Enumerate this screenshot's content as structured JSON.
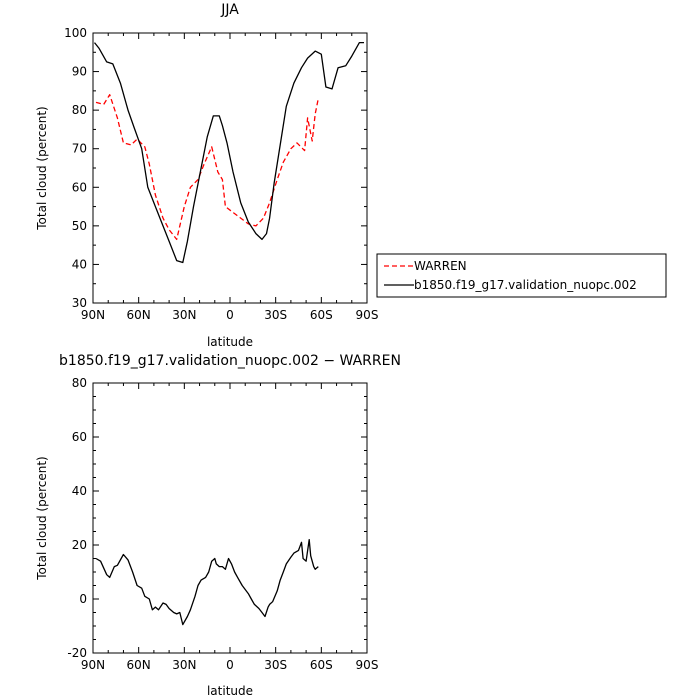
{
  "chart_data": [
    {
      "type": "line",
      "title": "JJA",
      "xlabel": "latitude",
      "ylabel": "Total cloud (percent)",
      "xlim": [
        -90,
        90
      ],
      "ylim": [
        30,
        100
      ],
      "x_ticks": [
        {
          "value": -90,
          "label": "90N"
        },
        {
          "value": -60,
          "label": "60N"
        },
        {
          "value": -30,
          "label": "30N"
        },
        {
          "value": 0,
          "label": "0"
        },
        {
          "value": 30,
          "label": "30S"
        },
        {
          "value": 60,
          "label": "60S"
        },
        {
          "value": 90,
          "label": "90S"
        }
      ],
      "y_ticks": [
        30,
        40,
        50,
        60,
        70,
        80,
        90,
        100
      ],
      "legend_position": "right",
      "series": [
        {
          "name": "WARREN",
          "color": "#ff0000",
          "style": "dashed",
          "x": [
            -88,
            -83,
            -79,
            -74,
            -70,
            -65,
            -61,
            -56,
            -53,
            -49,
            -44,
            -40,
            -35,
            -30,
            -26,
            -21,
            -17,
            -12,
            -8,
            -5,
            -3,
            2,
            7,
            12,
            17,
            22,
            26,
            31,
            35,
            40,
            44,
            49,
            51,
            54,
            56,
            58
          ],
          "y": [
            82,
            81.5,
            84,
            78,
            71.5,
            71,
            72.5,
            70.5,
            66,
            58,
            52,
            49,
            46.5,
            55,
            60,
            62,
            66,
            70.5,
            64,
            62,
            55,
            53.5,
            52,
            50.5,
            50,
            52,
            56,
            62,
            66.5,
            70,
            71.5,
            69.5,
            78,
            72,
            79,
            83
          ]
        },
        {
          "name": "b1850.f19_g17.validation_nuopc.002",
          "color": "#000000",
          "style": "solid",
          "x": [
            -89,
            -86,
            -81,
            -77,
            -72,
            -67,
            -63,
            -58,
            -54,
            -49,
            -44,
            -40,
            -35,
            -31,
            -28,
            -24,
            -19,
            -15,
            -11,
            -7,
            -5,
            -2,
            2,
            7,
            12,
            17,
            21,
            24,
            26,
            29,
            33,
            37,
            42,
            47,
            51,
            56,
            60,
            63,
            67,
            71,
            76,
            80,
            85,
            88
          ],
          "y": [
            97.5,
            96,
            92.5,
            92,
            87,
            80,
            75.5,
            70,
            60,
            55,
            50,
            46,
            41,
            40.5,
            46,
            55,
            65,
            73,
            78.5,
            78.5,
            76,
            71.5,
            64,
            56,
            51,
            48,
            46.5,
            48,
            52,
            61,
            71,
            81,
            87,
            91,
            93.5,
            95.3,
            94.5,
            86,
            85.5,
            91,
            91.5,
            94,
            97.5,
            97.5
          ]
        }
      ]
    },
    {
      "type": "line",
      "title": "b1850.f19_g17.validation_nuopc.002 − WARREN",
      "xlabel": "latitude",
      "ylabel": "Total cloud (percent)",
      "xlim": [
        -90,
        90
      ],
      "ylim": [
        -20,
        80
      ],
      "x_ticks": [
        {
          "value": -90,
          "label": "90N"
        },
        {
          "value": -60,
          "label": "60N"
        },
        {
          "value": -30,
          "label": "30N"
        },
        {
          "value": 0,
          "label": "0"
        },
        {
          "value": 30,
          "label": "30S"
        },
        {
          "value": 60,
          "label": "60S"
        },
        {
          "value": 90,
          "label": "90S"
        }
      ],
      "y_ticks": [
        -20,
        0,
        20,
        40,
        60,
        80
      ],
      "series": [
        {
          "color": "#000000",
          "style": "solid",
          "x": [
            -88,
            -85,
            -81,
            -79,
            -76,
            -74,
            -70,
            -67,
            -64,
            -61,
            -58,
            -56,
            -53,
            -51,
            -49,
            -47,
            -44,
            -42,
            -40,
            -37,
            -35,
            -33,
            -31,
            -28,
            -26,
            -23,
            -21,
            -19,
            -16,
            -14,
            -12,
            -10,
            -9,
            -7,
            -5,
            -3,
            -1,
            1,
            3,
            5,
            8,
            10,
            12,
            14,
            16,
            19,
            21,
            23,
            25,
            26,
            28,
            31,
            33,
            35,
            37,
            40,
            42,
            45,
            47,
            48,
            50,
            52,
            53,
            55,
            56,
            58
          ],
          "y": [
            15,
            14,
            9,
            8,
            12,
            12.5,
            16.5,
            14.5,
            10,
            5,
            4,
            1,
            0,
            -4,
            -3,
            -4,
            -1.5,
            -2,
            -3.5,
            -5,
            -5.5,
            -5,
            -9.5,
            -6.5,
            -4,
            1,
            5,
            7,
            8,
            10,
            14,
            15,
            13,
            12,
            12,
            11,
            15,
            13,
            10,
            8,
            5,
            3.5,
            2,
            0,
            -2,
            -3.5,
            -5,
            -6.5,
            -3,
            -2,
            -1,
            3,
            7,
            10,
            13,
            15.5,
            17,
            18,
            21,
            15,
            14,
            22,
            16,
            12,
            11,
            12
          ]
        }
      ]
    }
  ]
}
